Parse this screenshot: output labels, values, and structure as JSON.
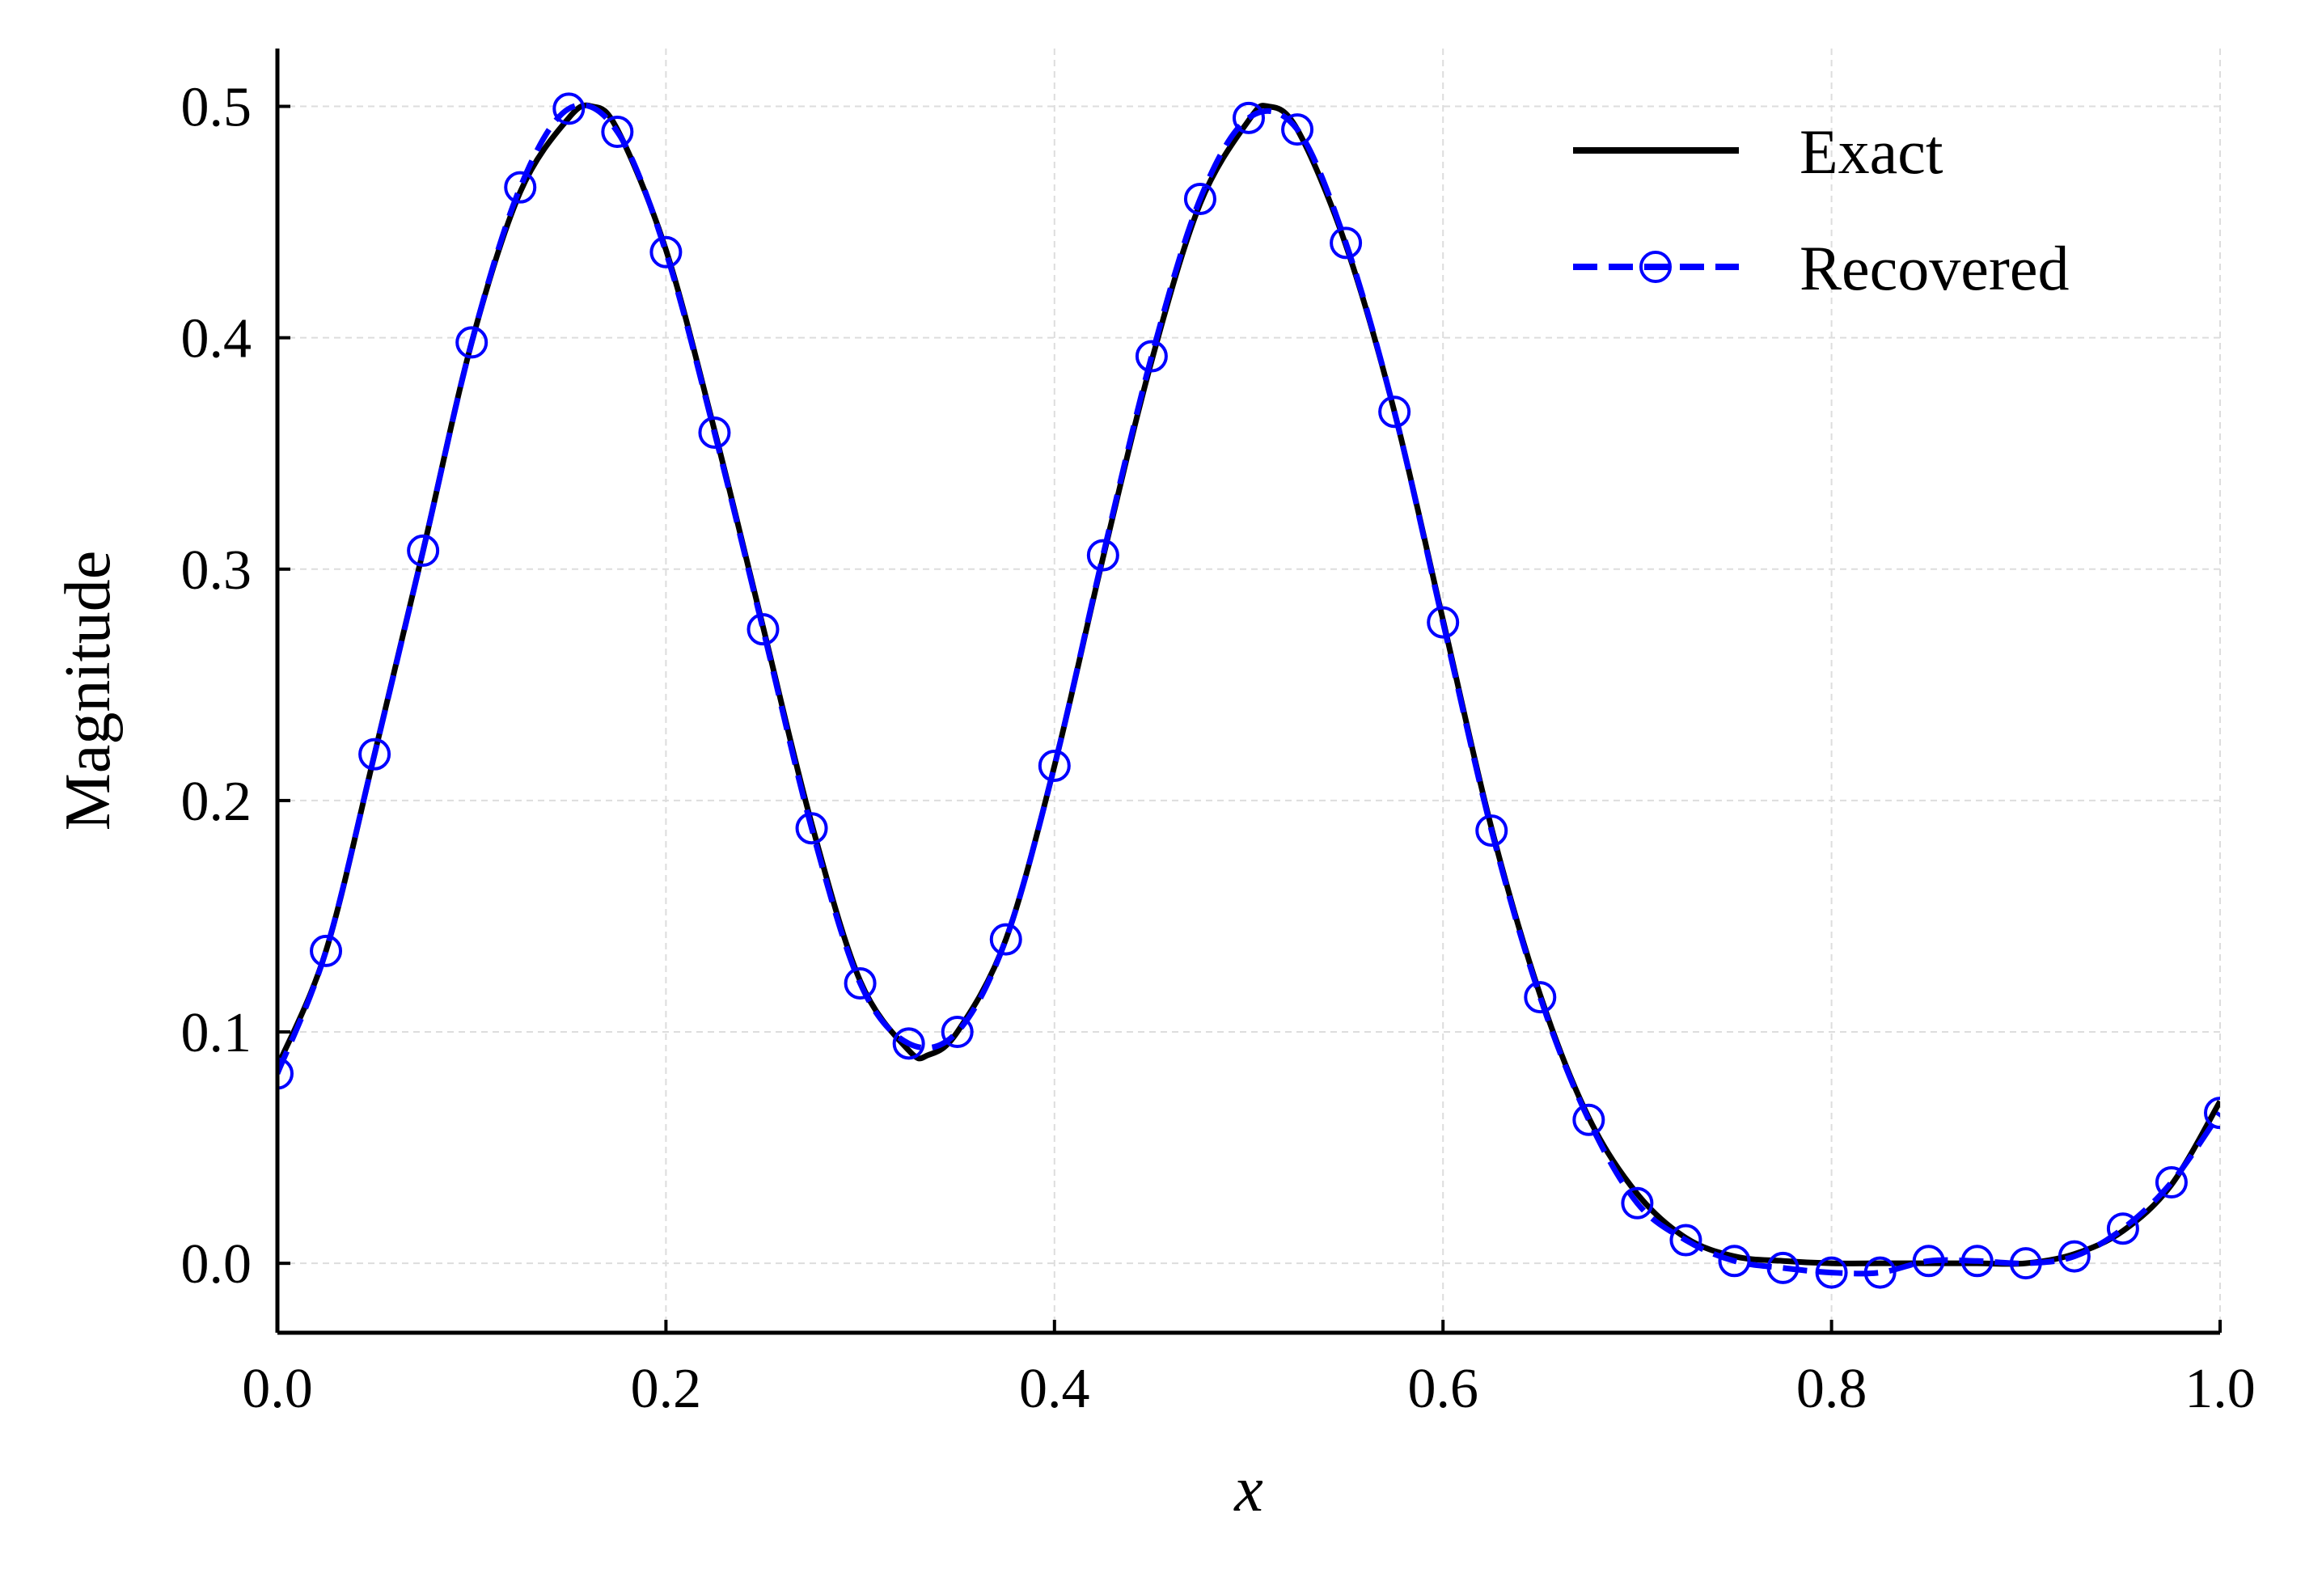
{
  "chart_data": {
    "type": "line",
    "xlabel": "x",
    "ylabel": "Magnitude",
    "xlim": [
      0.0,
      1.0
    ],
    "ylim": [
      -0.03,
      0.525
    ],
    "xticks": [
      "0.0",
      "0.2",
      "0.4",
      "0.6",
      "0.8",
      "1.0"
    ],
    "yticks": [
      "0.0",
      "0.1",
      "0.2",
      "0.3",
      "0.4",
      "0.5"
    ],
    "grid": true,
    "legend_position": "top-right",
    "series": [
      {
        "name": "Exact",
        "style": "solid",
        "color": "#000000",
        "x": [
          0.0,
          0.025,
          0.05,
          0.075,
          0.1,
          0.125,
          0.15,
          0.162,
          0.175,
          0.2,
          0.225,
          0.25,
          0.275,
          0.3,
          0.325,
          0.335,
          0.35,
          0.375,
          0.4,
          0.425,
          0.45,
          0.475,
          0.5,
          0.51,
          0.525,
          0.55,
          0.575,
          0.6,
          0.625,
          0.65,
          0.675,
          0.7,
          0.725,
          0.75,
          0.775,
          0.8,
          0.825,
          0.85,
          0.875,
          0.9,
          0.925,
          0.95,
          0.975,
          1.0
        ],
        "y": [
          0.085,
          0.135,
          0.22,
          0.308,
          0.398,
          0.463,
          0.495,
          0.5,
          0.49,
          0.438,
          0.36,
          0.275,
          0.19,
          0.122,
          0.092,
          0.09,
          0.1,
          0.14,
          0.215,
          0.305,
          0.39,
          0.458,
          0.494,
          0.5,
          0.49,
          0.44,
          0.368,
          0.278,
          0.188,
          0.116,
          0.063,
          0.03,
          0.011,
          0.003,
          0.001,
          0.0,
          0.0,
          0.0,
          0.0,
          0.0,
          0.004,
          0.014,
          0.034,
          0.07
        ]
      },
      {
        "name": "Recovered",
        "style": "dashed-circle",
        "color": "#0000ff",
        "x": [
          0.0,
          0.025,
          0.05,
          0.075,
          0.1,
          0.125,
          0.15,
          0.175,
          0.2,
          0.225,
          0.25,
          0.275,
          0.3,
          0.325,
          0.35,
          0.375,
          0.4,
          0.425,
          0.45,
          0.475,
          0.5,
          0.525,
          0.55,
          0.575,
          0.6,
          0.625,
          0.65,
          0.675,
          0.7,
          0.725,
          0.75,
          0.775,
          0.8,
          0.825,
          0.85,
          0.875,
          0.9,
          0.925,
          0.95,
          0.975,
          1.0
        ],
        "y": [
          0.082,
          0.135,
          0.22,
          0.308,
          0.398,
          0.465,
          0.499,
          0.489,
          0.437,
          0.359,
          0.274,
          0.188,
          0.121,
          0.095,
          0.1,
          0.14,
          0.215,
          0.306,
          0.392,
          0.46,
          0.495,
          0.49,
          0.441,
          0.368,
          0.277,
          0.187,
          0.115,
          0.062,
          0.026,
          0.01,
          0.001,
          -0.002,
          -0.004,
          -0.004,
          0.001,
          0.001,
          0.0,
          0.003,
          0.015,
          0.035,
          0.065
        ]
      }
    ]
  }
}
